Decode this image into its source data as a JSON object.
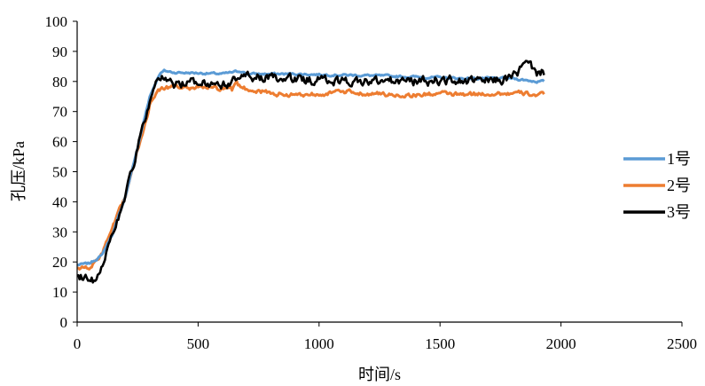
{
  "chart_data": {
    "type": "line",
    "xlabel": "时间/s",
    "ylabel": "孔压/kPa",
    "xlim": [
      0,
      2500
    ],
    "ylim": [
      0,
      100
    ],
    "x_ticks": [
      0,
      500,
      1000,
      1500,
      2000,
      2500
    ],
    "y_ticks": [
      0,
      10,
      20,
      30,
      40,
      50,
      60,
      70,
      80,
      90,
      100
    ],
    "grid": false,
    "legend_position": "right",
    "series": [
      {
        "name": "1号",
        "color": "#5b9bd5",
        "noise": 0.3,
        "x": [
          0,
          50,
          100,
          150,
          200,
          250,
          300,
          340,
          360,
          400,
          500,
          600,
          680,
          700,
          800,
          900,
          1000,
          1200,
          1400,
          1600,
          1700,
          1800,
          1850,
          1900,
          1930
        ],
        "y": [
          19,
          19.5,
          22,
          30,
          42,
          58,
          75,
          82.5,
          83.5,
          83,
          82.8,
          82.5,
          83.5,
          82.5,
          82.5,
          82.5,
          82.3,
          82,
          81.5,
          81,
          81,
          81,
          80.5,
          80,
          80
        ]
      },
      {
        "name": "2号",
        "color": "#ed7d31",
        "noise": 0.6,
        "x": [
          0,
          50,
          100,
          150,
          200,
          250,
          300,
          330,
          350,
          400,
          500,
          600,
          640,
          660,
          680,
          700,
          750,
          800,
          900,
          1000,
          1100,
          1200,
          1300,
          1400,
          1500,
          1600,
          1700,
          1800,
          1850,
          1900,
          1930
        ],
        "y": [
          18,
          18,
          22,
          32,
          42,
          57,
          72,
          76.5,
          78,
          78,
          78,
          77.5,
          77,
          79,
          78,
          77.5,
          77,
          76,
          75.5,
          76,
          76.5,
          76,
          75.5,
          75.5,
          76,
          75.5,
          76,
          76,
          76,
          75.5,
          75.5
        ]
      },
      {
        "name": "3号",
        "color": "#000000",
        "noise": 1.3,
        "x": [
          0,
          40,
          70,
          100,
          150,
          200,
          250,
          300,
          330,
          350,
          400,
          500,
          600,
          650,
          680,
          700,
          800,
          900,
          1000,
          1100,
          1200,
          1300,
          1400,
          1500,
          1600,
          1700,
          1780,
          1820,
          1860,
          1900,
          1930
        ],
        "y": [
          15.5,
          15,
          13.5,
          19,
          30,
          42,
          58,
          73,
          79,
          81,
          79,
          80,
          79,
          80,
          82.5,
          81.5,
          81,
          80.5,
          80.5,
          80,
          80,
          80,
          80,
          80.5,
          80,
          80,
          81,
          83,
          86,
          83,
          83
        ]
      }
    ]
  }
}
